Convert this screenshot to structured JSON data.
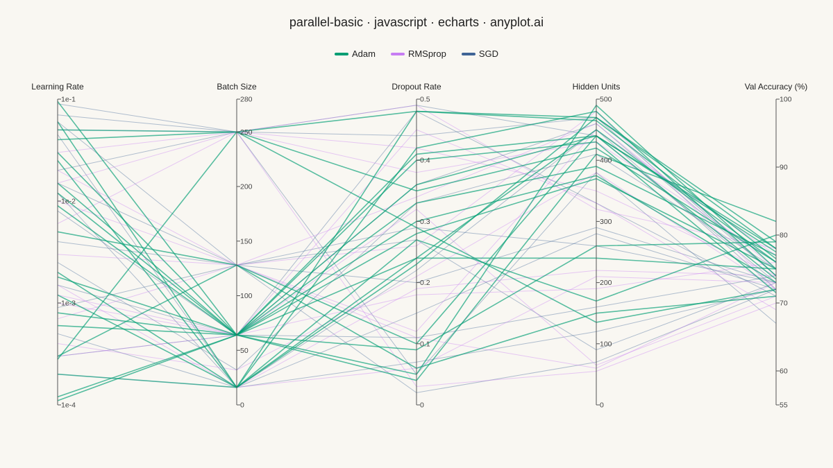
{
  "title": "parallel-basic · javascript · echarts · anyplot.ai",
  "legend": [
    {
      "name": "Adam",
      "color": "#009E73"
    },
    {
      "name": "RMSprop",
      "color": "#C77DF3"
    },
    {
      "name": "SGD",
      "color": "#3F6496"
    }
  ],
  "chart_data": {
    "type": "parallel",
    "axes": [
      {
        "name": "Learning Rate",
        "scale": "log",
        "min": 0.0001,
        "max": 0.1,
        "ticks": [
          0.1,
          0.01,
          0.001,
          0.0001
        ],
        "tick_labels": [
          "1e-1",
          "1e-2",
          "1e-3",
          "1e-4"
        ]
      },
      {
        "name": "Batch Size",
        "scale": "linear",
        "min": 0,
        "max": 280,
        "ticks": [
          0,
          50,
          100,
          150,
          200,
          250,
          280
        ],
        "tick_labels": [
          "0",
          "50",
          "100",
          "150",
          "200",
          "250",
          "280"
        ]
      },
      {
        "name": "Dropout Rate",
        "scale": "linear",
        "min": 0,
        "max": 0.5,
        "ticks": [
          0,
          0.1,
          0.2,
          0.3,
          0.4,
          0.5
        ],
        "tick_labels": [
          "0",
          "0.1",
          "0.2",
          "0.3",
          "0.4",
          "0.5"
        ]
      },
      {
        "name": "Hidden Units",
        "scale": "linear",
        "min": 0,
        "max": 500,
        "ticks": [
          0,
          100,
          200,
          300,
          400,
          500
        ],
        "tick_labels": [
          "0",
          "100",
          "200",
          "300",
          "400",
          "500"
        ]
      },
      {
        "name": "Val Accuracy (%)",
        "scale": "linear",
        "min": 55,
        "max": 100,
        "ticks": [
          55,
          60,
          70,
          80,
          90,
          100
        ],
        "tick_labels": [
          "55",
          "60",
          "70",
          "80",
          "90",
          "100"
        ]
      }
    ],
    "series": [
      {
        "name": "Adam",
        "color": "#009E73",
        "opacity": 0.65,
        "width": 1.6,
        "values": [
          [
            0.095,
            64,
            0.09,
            260,
            79
          ],
          [
            0.06,
            16,
            0.48,
            470,
            78
          ],
          [
            0.05,
            250,
            0.48,
            465,
            76.5
          ],
          [
            0.04,
            250,
            0.35,
            420,
            76
          ],
          [
            0.03,
            64,
            0.05,
            490,
            75
          ],
          [
            0.015,
            64,
            0.36,
            440,
            73.5
          ],
          [
            0.009,
            64,
            0.33,
            390,
            77
          ],
          [
            0.005,
            128,
            0.06,
            150,
            71
          ],
          [
            0.0012,
            16,
            0.42,
            480,
            74
          ],
          [
            0.0006,
            64,
            0.28,
            370,
            75
          ],
          [
            0.0003,
            128,
            0.1,
            440,
            78
          ],
          [
            0.0002,
            16,
            0.23,
            470,
            79
          ],
          [
            0.00012,
            64,
            0.41,
            440,
            77.5
          ],
          [
            0.00011,
            64,
            0.04,
            410,
            82
          ],
          [
            0.00028,
            250,
            0.29,
            135,
            72
          ],
          [
            0.0008,
            64,
            0.3,
            375,
            73
          ],
          [
            0.002,
            16,
            0.24,
            240,
            75
          ],
          [
            0.0018,
            64,
            0.4,
            430,
            71.5
          ],
          [
            0.025,
            16,
            0.27,
            170,
            80
          ],
          [
            0.012,
            64,
            0.24,
            450,
            76
          ]
        ]
      },
      {
        "name": "RMSprop",
        "color": "#C77DF3",
        "opacity": 0.4,
        "width": 1,
        "values": [
          [
            0.05,
            250,
            0.49,
            320,
            78
          ],
          [
            0.03,
            250,
            0.38,
            430,
            76
          ],
          [
            0.02,
            128,
            0.26,
            480,
            72
          ],
          [
            0.01,
            128,
            0.11,
            60,
            73
          ],
          [
            0.006,
            250,
            0.03,
            55,
            70
          ],
          [
            0.003,
            128,
            0.34,
            460,
            75
          ],
          [
            0.0015,
            16,
            0.19,
            220,
            74
          ],
          [
            0.001,
            64,
            0.32,
            65,
            71
          ],
          [
            0.0007,
            128,
            0.12,
            450,
            77
          ],
          [
            0.0004,
            32,
            0.21,
            380,
            72
          ],
          [
            0.0003,
            64,
            0.45,
            330,
            69
          ],
          [
            0.0002,
            16,
            0.06,
            210,
            73
          ],
          [
            0.015,
            250,
            0.42,
            350,
            74
          ],
          [
            0.0012,
            64,
            0.18,
            190,
            76
          ]
        ]
      },
      {
        "name": "SGD",
        "color": "#3F6496",
        "opacity": 0.4,
        "width": 1,
        "values": [
          [
            0.09,
            250,
            0.49,
            440,
            73
          ],
          [
            0.07,
            250,
            0.44,
            470,
            74
          ],
          [
            0.045,
            16,
            0.22,
            450,
            72
          ],
          [
            0.02,
            250,
            0.05,
            380,
            67
          ],
          [
            0.015,
            128,
            0.29,
            260,
            73
          ],
          [
            0.008,
            64,
            0.11,
            160,
            74
          ],
          [
            0.004,
            128,
            0.02,
            70,
            72
          ],
          [
            0.0025,
            32,
            0.33,
            410,
            75
          ],
          [
            0.0015,
            64,
            0.48,
            330,
            71
          ],
          [
            0.0009,
            128,
            0.27,
            90,
            73
          ],
          [
            0.0005,
            16,
            0.15,
            280,
            72
          ],
          [
            0.0003,
            64,
            0.36,
            460,
            74
          ],
          [
            0.06,
            128,
            0.2,
            290,
            73
          ],
          [
            0.012,
            16,
            0.07,
            120,
            72
          ]
        ]
      }
    ]
  }
}
